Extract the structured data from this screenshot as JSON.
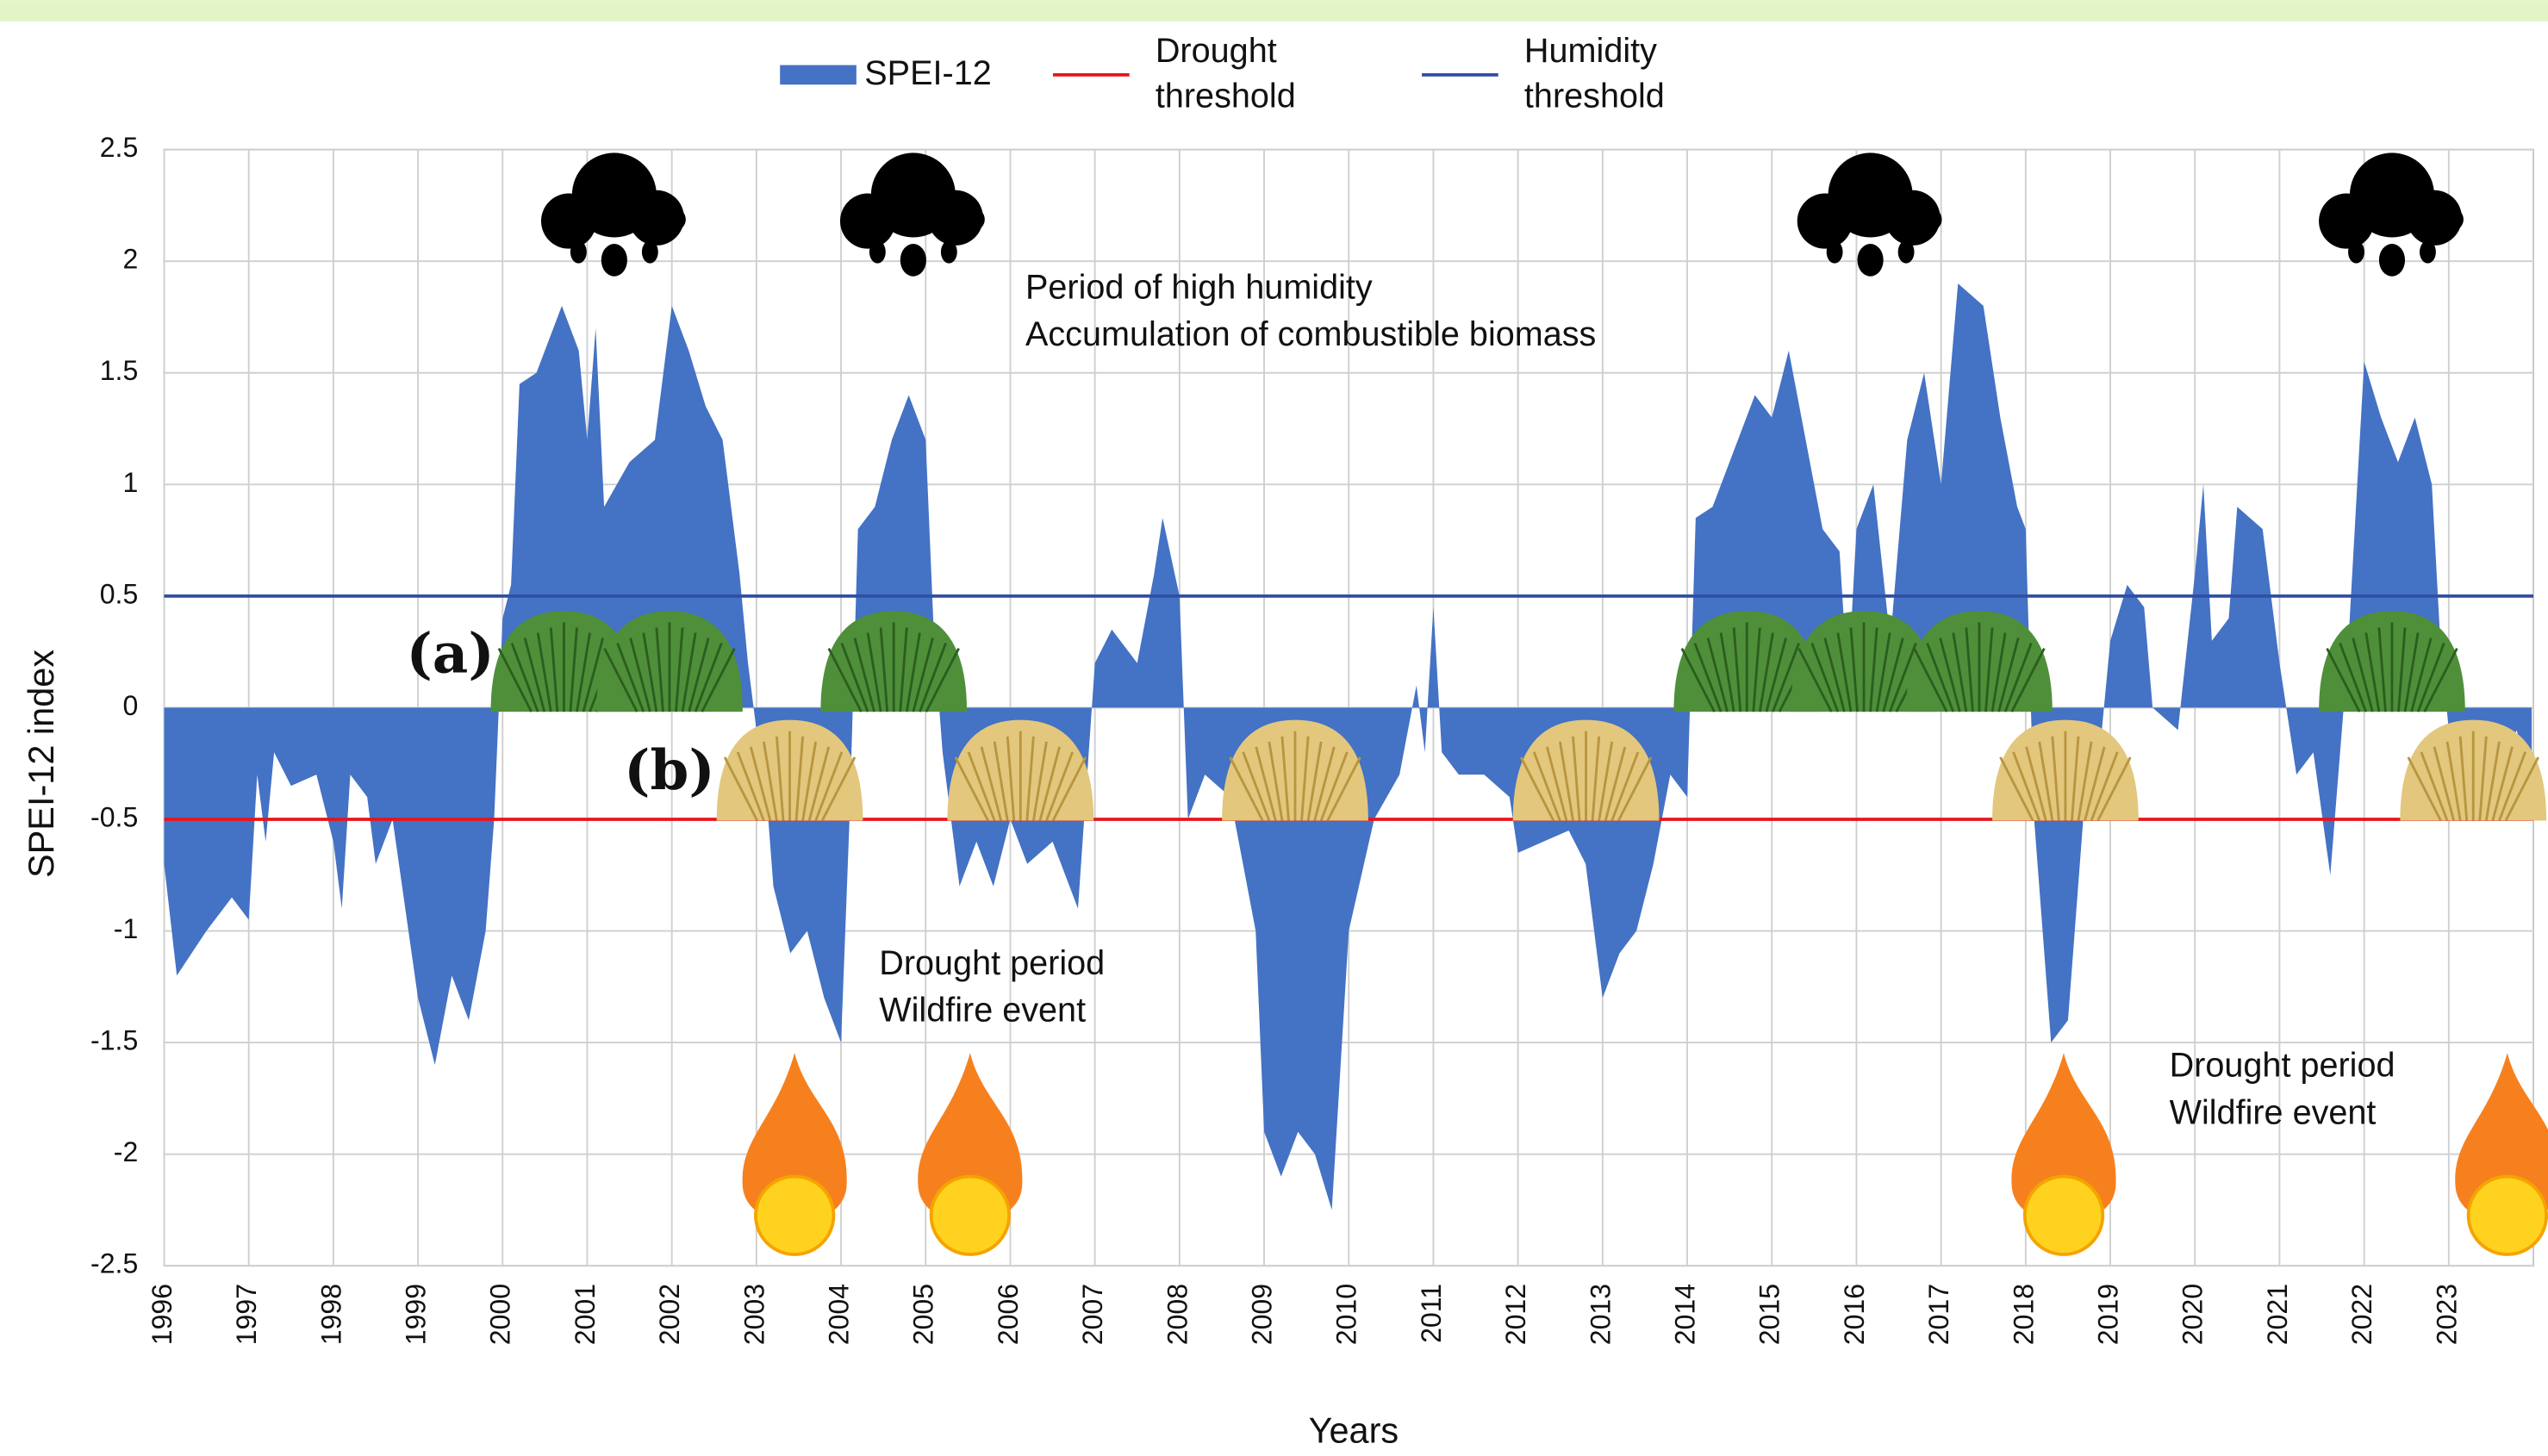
{
  "chart_data": {
    "type": "area",
    "title_x": "Years",
    "ylabel": "SPEI-12 index",
    "xlim": [
      1996,
      2024
    ],
    "xticks": [
      1996,
      1997,
      1998,
      1999,
      2000,
      2001,
      2002,
      2003,
      2004,
      2005,
      2006,
      2007,
      2008,
      2009,
      2010,
      2011,
      2012,
      2013,
      2014,
      2015,
      2016,
      2017,
      2018,
      2019,
      2020,
      2021,
      2022,
      2023
    ],
    "ylim": [
      -2.5,
      2.5
    ],
    "yticks": [
      2.5,
      2,
      1.5,
      1,
      0.5,
      0,
      -0.5,
      -1,
      -1.5,
      -2,
      -2.5
    ],
    "grid": true,
    "series": [
      {
        "name": "SPEI-12",
        "color": "#4472c4",
        "x": [
          1996,
          1996.15,
          1996.5,
          1996.8,
          1997,
          1997.1,
          1997.2,
          1997.3,
          1997.5,
          1997.8,
          1998,
          1998.1,
          1998.2,
          1998.4,
          1998.5,
          1998.7,
          1999,
          1999.2,
          1999.4,
          1999.6,
          1999.8,
          1999.9,
          2000,
          2000.1,
          2000.2,
          2000.4,
          2000.7,
          2000.9,
          2001,
          2001.1,
          2001.2,
          2001.5,
          2001.8,
          2002,
          2002.2,
          2002.4,
          2002.6,
          2002.8,
          2002.9,
          2003,
          2003.1,
          2003.2,
          2003.4,
          2003.6,
          2003.8,
          2004,
          2004.1,
          2004.2,
          2004.4,
          2004.6,
          2004.8,
          2005,
          2005.1,
          2005.2,
          2005.4,
          2005.6,
          2005.8,
          2006,
          2006.2,
          2006.5,
          2006.8,
          2007,
          2007.2,
          2007.5,
          2007.7,
          2007.8,
          2008,
          2008.1,
          2008.3,
          2008.6,
          2008.9,
          2009,
          2009.2,
          2009.4,
          2009.6,
          2009.8,
          2010,
          2010.3,
          2010.6,
          2010.8,
          2010.9,
          2011,
          2011.1,
          2011.3,
          2011.6,
          2011.9,
          2012,
          2012.3,
          2012.6,
          2012.8,
          2013,
          2013.2,
          2013.4,
          2013.6,
          2013.8,
          2014,
          2014.1,
          2014.3,
          2014.5,
          2014.8,
          2015,
          2015.2,
          2015.4,
          2015.6,
          2015.8,
          2015.9,
          2016,
          2016.2,
          2016.4,
          2016.6,
          2016.8,
          2017,
          2017.2,
          2017.5,
          2017.7,
          2017.9,
          2018,
          2018.1,
          2018.3,
          2018.5,
          2018.7,
          2018.9,
          2019,
          2019.2,
          2019.4,
          2019.5,
          2019.8,
          2020,
          2020.1,
          2020.2,
          2020.4,
          2020.5,
          2020.8,
          2021,
          2021.2,
          2021.4,
          2021.6,
          2021.8,
          2022,
          2022.2,
          2022.4,
          2022.6,
          2022.8,
          2022.9,
          2023,
          2023.3,
          2023.5,
          2023.8,
          2023.98
        ],
        "values": [
          -0.7,
          -1.2,
          -1.0,
          -0.85,
          -0.95,
          -0.3,
          -0.6,
          -0.2,
          -0.35,
          -0.3,
          -0.6,
          -0.9,
          -0.3,
          -0.4,
          -0.7,
          -0.5,
          -1.3,
          -1.6,
          -1.2,
          -1.4,
          -1.0,
          -0.5,
          0.4,
          0.55,
          1.45,
          1.5,
          1.8,
          1.6,
          1.2,
          1.7,
          0.9,
          1.1,
          1.2,
          1.8,
          1.6,
          1.35,
          1.2,
          0.6,
          0.2,
          -0.1,
          -0.3,
          -0.8,
          -1.1,
          -1.0,
          -1.3,
          -1.5,
          -0.5,
          0.8,
          0.9,
          1.2,
          1.4,
          1.2,
          0.3,
          -0.2,
          -0.8,
          -0.6,
          -0.8,
          -0.5,
          -0.7,
          -0.6,
          -0.9,
          0.2,
          0.35,
          0.2,
          0.6,
          0.85,
          0.5,
          -0.5,
          -0.3,
          -0.4,
          -1.0,
          -1.9,
          -2.1,
          -1.9,
          -2.0,
          -2.25,
          -1.0,
          -0.5,
          -0.3,
          0.1,
          -0.2,
          0.45,
          -0.2,
          -0.3,
          -0.3,
          -0.4,
          -0.65,
          -0.6,
          -0.55,
          -0.7,
          -1.3,
          -1.1,
          -1.0,
          -0.7,
          -0.3,
          -0.4,
          0.85,
          0.9,
          1.1,
          1.4,
          1.3,
          1.6,
          1.2,
          0.8,
          0.7,
          0.1,
          0.8,
          1.0,
          0.3,
          1.2,
          1.5,
          1.0,
          1.9,
          1.8,
          1.3,
          0.9,
          0.8,
          -0.5,
          -1.5,
          -1.4,
          -0.4,
          -0.1,
          0.3,
          0.55,
          0.45,
          0.0,
          -0.1,
          0.6,
          1.0,
          0.3,
          0.4,
          0.9,
          0.8,
          0.2,
          -0.3,
          -0.2,
          -0.75,
          0.2,
          1.55,
          1.3,
          1.1,
          1.3,
          1.0,
          0.3,
          -0.1,
          -0.3,
          -0.5,
          -0.1,
          -0.3
        ]
      }
    ],
    "thresholds": [
      {
        "name": "Drought threshold",
        "value": -0.5,
        "color": "#e8141c"
      },
      {
        "name": "Humidity threshold",
        "value": 0.5,
        "color": "#2f4fa3"
      }
    ],
    "annotations": [
      {
        "lines": [
          "Period of high humidity",
          "Accumulation of combustible biomass"
        ]
      },
      {
        "lines": [
          "Drought period",
          "Wildfire event"
        ]
      },
      {
        "lines": [
          "Drought period",
          "Wildfire event"
        ]
      }
    ],
    "tags": [
      "(a)",
      "(b)"
    ]
  }
}
